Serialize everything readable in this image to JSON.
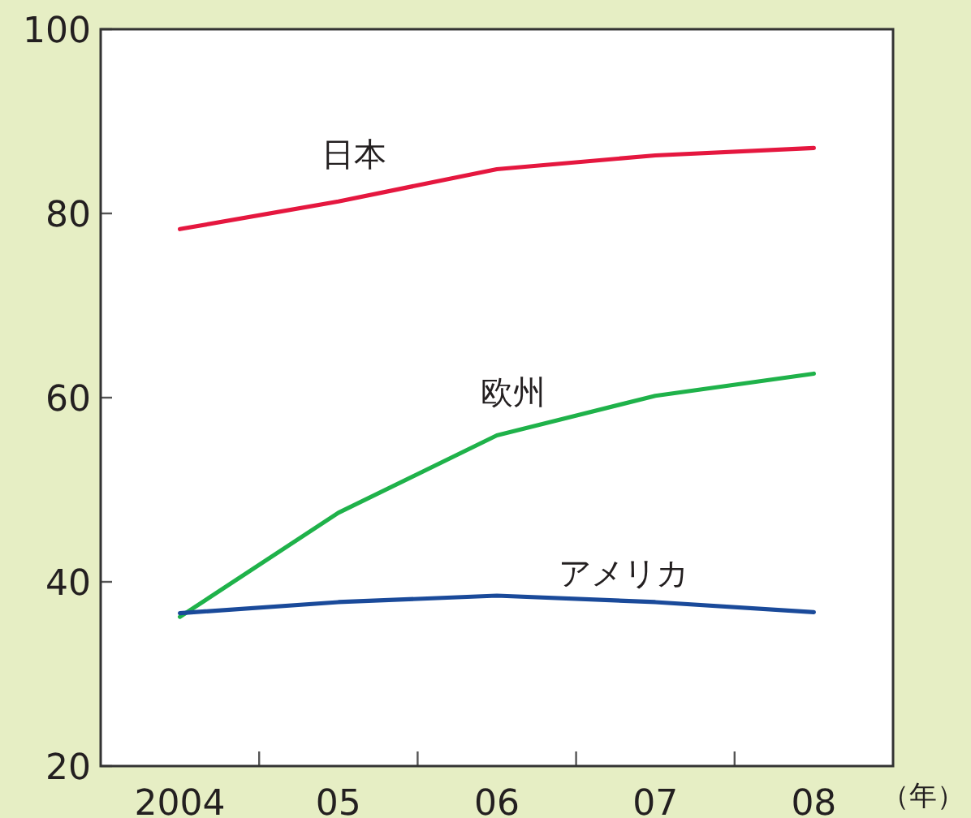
{
  "chart_data": {
    "type": "line",
    "categories": [
      "2004",
      "05",
      "06",
      "07",
      "08"
    ],
    "xlabel": "（年）",
    "ylim": [
      20,
      100
    ],
    "yticks": [
      20,
      40,
      60,
      80,
      100
    ],
    "grid": false,
    "legend": false,
    "marker": "none",
    "line_style": "solid",
    "series": [
      {
        "name": "日本",
        "color": "#e5173f",
        "values": [
          78.3,
          81.3,
          84.8,
          86.3,
          87.1
        ]
      },
      {
        "name": "欧州",
        "color": "#1fb24a",
        "values": [
          36.2,
          47.5,
          55.9,
          60.2,
          62.6
        ]
      },
      {
        "name": "アメリカ",
        "color": "#1a4a9a",
        "values": [
          36.6,
          37.8,
          38.5,
          37.8,
          36.7
        ]
      }
    ]
  }
}
